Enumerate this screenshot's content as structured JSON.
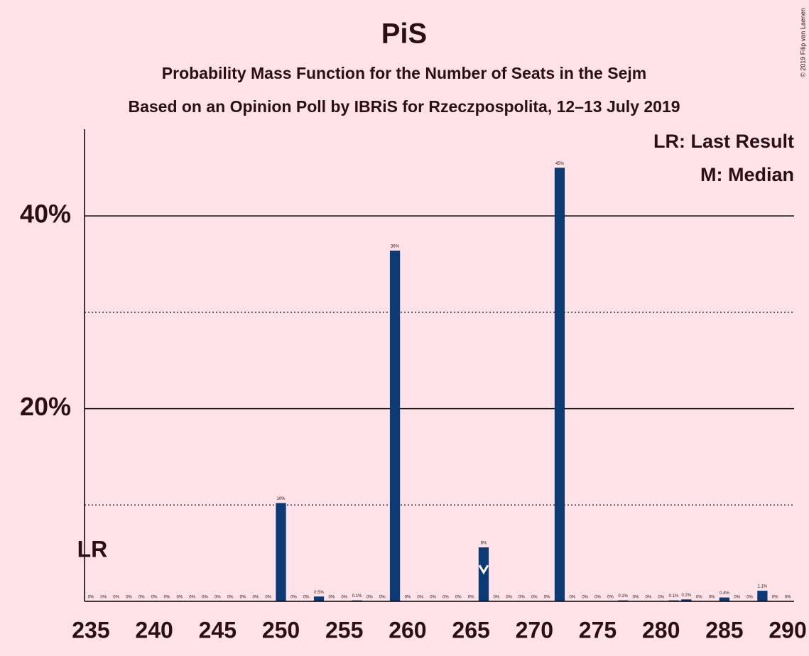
{
  "chart_data": {
    "type": "bar",
    "title": "PiS",
    "subtitle": "Probability Mass Function for the Number of Seats in the Sejm",
    "subtitle2": "Based on an Opinion Poll by IBRiS for Rzeczpospolita, 12–13 July 2019",
    "copyright": "© 2019 Filip van Laenen",
    "legend": [
      "LR: Last Result",
      "M: Median"
    ],
    "last_result": 235,
    "last_result_label": "LR",
    "median": 266,
    "color": "#0b3a75",
    "x": [
      235,
      236,
      237,
      238,
      239,
      240,
      241,
      242,
      243,
      244,
      245,
      246,
      247,
      248,
      249,
      250,
      251,
      252,
      253,
      254,
      255,
      256,
      257,
      258,
      259,
      260,
      261,
      262,
      263,
      264,
      265,
      266,
      267,
      268,
      269,
      270,
      271,
      272,
      273,
      274,
      275,
      276,
      277,
      278,
      279,
      280,
      281,
      282,
      283,
      284,
      285,
      286,
      287,
      288,
      289,
      290
    ],
    "values": [
      0,
      0,
      0,
      0,
      0,
      0,
      0,
      0,
      0,
      0,
      0,
      0,
      0,
      0,
      0,
      10.2,
      0,
      0,
      0.5,
      0,
      0,
      0.1,
      0,
      0,
      36.4,
      0,
      0,
      0,
      0,
      0,
      0,
      5.6,
      0,
      0,
      0,
      0,
      0,
      45.0,
      0,
      0,
      0,
      0,
      0.1,
      0,
      0,
      0,
      0.1,
      0.2,
      0,
      0,
      0.4,
      0,
      0,
      1.1,
      0,
      0
    ],
    "value_labels": [
      "0%",
      "0%",
      "0%",
      "0%",
      "0%",
      "0%",
      "0%",
      "0%",
      "0%",
      "0%",
      "0%",
      "0%",
      "0%",
      "0%",
      "0%",
      "10%",
      "0%",
      "0%",
      "0.5%",
      "0%",
      "0%",
      "0.1%",
      "0%",
      "0%",
      "36%",
      "0%",
      "0%",
      "0%",
      "0%",
      "0%",
      "0%",
      "6%",
      "0%",
      "0%",
      "0%",
      "0%",
      "0%",
      "45%",
      "0%",
      "0%",
      "0%",
      "0%",
      "0.1%",
      "0%",
      "0%",
      "0%",
      "0.1%",
      "0.2%",
      "0%",
      "0%",
      "0.4%",
      "0%",
      "0%",
      "1.1%",
      "0%",
      "0%"
    ],
    "xlim": [
      234.5,
      290.5
    ],
    "xticks": [
      235,
      240,
      245,
      250,
      255,
      260,
      265,
      270,
      275,
      280,
      285,
      290
    ],
    "ylim": [
      0,
      49
    ],
    "yticks": [
      {
        "value": 20,
        "label": "20%"
      },
      {
        "value": 40,
        "label": "40%"
      }
    ],
    "y_minor_gridlines": [
      10,
      30
    ]
  }
}
